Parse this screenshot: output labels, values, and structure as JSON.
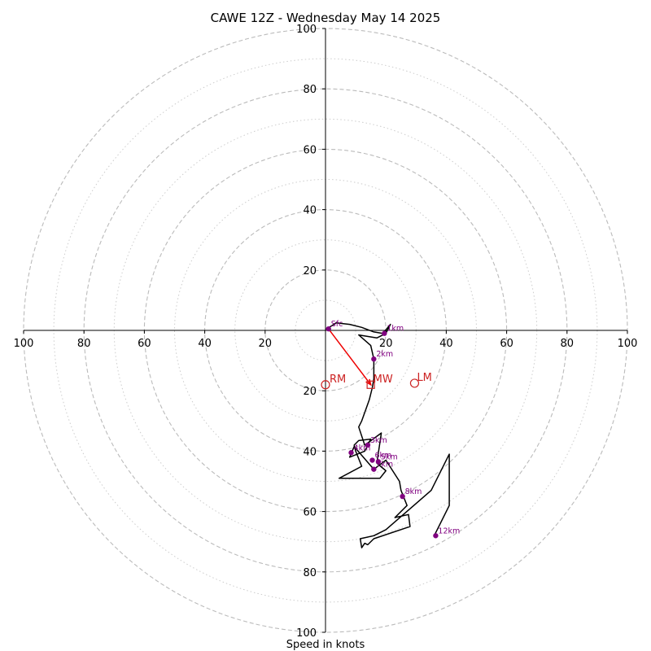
{
  "chart_data": {
    "type": "hodograph",
    "title": "CAWE 12Z - Wednesday May 14 2025",
    "xlabel": "Speed in knots",
    "ylabel": "",
    "xlim": [
      -100,
      100
    ],
    "ylim": [
      -100,
      100
    ],
    "rings_dashed": [
      20,
      40,
      60,
      80,
      100
    ],
    "rings_dotted": [
      10,
      30,
      50,
      70,
      90
    ],
    "x_ticks": [
      {
        "value": -100,
        "label": "100"
      },
      {
        "value": -80,
        "label": "80"
      },
      {
        "value": -60,
        "label": "60"
      },
      {
        "value": -40,
        "label": "40"
      },
      {
        "value": -20,
        "label": "20"
      },
      {
        "value": 20,
        "label": "20"
      },
      {
        "value": 40,
        "label": "40"
      },
      {
        "value": 60,
        "label": "60"
      },
      {
        "value": 80,
        "label": "80"
      },
      {
        "value": 100,
        "label": "100"
      }
    ],
    "y_ticks": [
      {
        "value": 100,
        "label": "100"
      },
      {
        "value": 80,
        "label": "80"
      },
      {
        "value": 60,
        "label": "60"
      },
      {
        "value": 40,
        "label": "40"
      },
      {
        "value": 20,
        "label": "20"
      },
      {
        "value": -20,
        "label": "20"
      },
      {
        "value": -40,
        "label": "40"
      },
      {
        "value": -60,
        "label": "60"
      },
      {
        "value": -80,
        "label": "80"
      },
      {
        "value": -100,
        "label": "100"
      }
    ],
    "trace": [
      [
        0.5,
        0.5
      ],
      [
        3.5,
        2.5
      ],
      [
        8,
        2
      ],
      [
        12,
        1
      ],
      [
        16,
        -0.5
      ],
      [
        19,
        -1
      ],
      [
        21.5,
        2
      ],
      [
        20,
        -1
      ],
      [
        17,
        -2.5
      ],
      [
        11,
        -1.5
      ],
      [
        15,
        -5
      ],
      [
        16,
        -9.5
      ],
      [
        16,
        -16
      ],
      [
        15.5,
        -19
      ],
      [
        14.5,
        -23
      ],
      [
        12,
        -30
      ],
      [
        11,
        -32
      ],
      [
        13,
        -38
      ],
      [
        18.5,
        -34
      ],
      [
        17,
        -44
      ],
      [
        20,
        -46.5
      ],
      [
        18,
        -49
      ],
      [
        4.5,
        -49
      ],
      [
        12,
        -45
      ],
      [
        10,
        -40
      ],
      [
        9.5,
        -38
      ],
      [
        11,
        -36.5
      ],
      [
        15,
        -36
      ],
      [
        13,
        -40
      ],
      [
        8,
        -42
      ],
      [
        9.5,
        -38.5
      ],
      [
        16,
        -46
      ],
      [
        20,
        -43
      ],
      [
        24.5,
        -50
      ],
      [
        25,
        -53
      ],
      [
        27,
        -58
      ],
      [
        23,
        -62
      ],
      [
        27.5,
        -61
      ],
      [
        28,
        -65
      ],
      [
        16,
        -69
      ],
      [
        14,
        -71
      ],
      [
        13,
        -70.5
      ],
      [
        12,
        -72
      ],
      [
        11.5,
        -69
      ],
      [
        16,
        -68
      ],
      [
        20,
        -66
      ],
      [
        35,
        -53
      ],
      [
        41,
        -41
      ],
      [
        41,
        -58
      ],
      [
        36,
        -68
      ]
    ],
    "height_markers": [
      {
        "label": "Sfc",
        "u": 1,
        "v": 0.5
      },
      {
        "label": "1km",
        "u": 19.5,
        "v": -1
      },
      {
        "label": "2km",
        "u": 16,
        "v": -9.5
      },
      {
        "label": "3km",
        "u": 14,
        "v": -38
      },
      {
        "label": "4km",
        "u": 8.5,
        "v": -40.5
      },
      {
        "label": "5km",
        "u": 17.5,
        "v": -43.5
      },
      {
        "label": "6km",
        "u": 15.5,
        "v": -43
      },
      {
        "label": "7km",
        "u": 16,
        "v": -46
      },
      {
        "label": "8km",
        "u": 25.5,
        "v": -55
      },
      {
        "label": "12km",
        "u": 36.5,
        "v": -68
      }
    ],
    "storm_motion": {
      "RM": {
        "label": "RM",
        "u": 0,
        "v": -18
      },
      "LM": {
        "label": "LM",
        "u": 29.5,
        "v": -17.5
      },
      "MW": {
        "label": "MW",
        "u": 15,
        "v": -18
      }
    },
    "colors": {
      "trace": "#000000",
      "markers": "#800080",
      "motion": "#cc2222",
      "shear_vector": "#ee0000",
      "rings": "#bbbbbb"
    }
  }
}
